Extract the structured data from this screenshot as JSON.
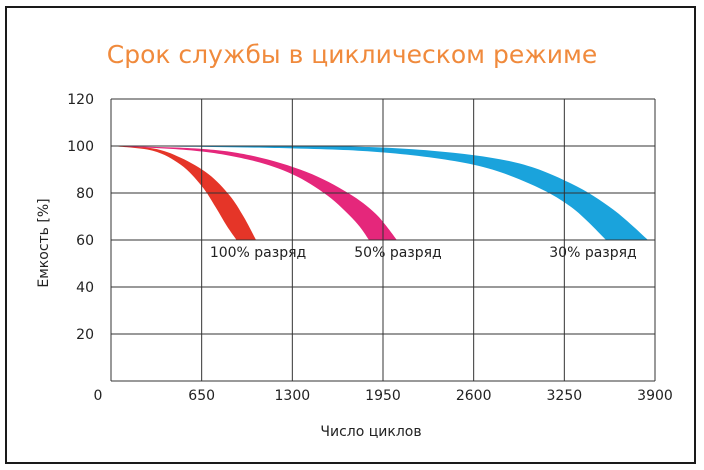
{
  "chart_data": {
    "type": "area",
    "title": "Срок службы в циклическом режиме",
    "xlabel": "Число циклов",
    "ylabel": "Емкость [%]",
    "xlim": [
      0,
      3900
    ],
    "ylim": [
      0,
      120
    ],
    "x_ticks": [
      "0",
      "650",
      "1300",
      "1950",
      "2600",
      "3250",
      "3900"
    ],
    "y_ticks": [
      "20",
      "40",
      "60",
      "80",
      "100",
      "120"
    ],
    "grid": true,
    "series": [
      {
        "name": "100% разряд",
        "color": "#e53528",
        "upper": [
          [
            0,
            100
          ],
          [
            300,
            99
          ],
          [
            500,
            95
          ],
          [
            700,
            88
          ],
          [
            850,
            79
          ],
          [
            950,
            70
          ],
          [
            1040,
            60
          ]
        ],
        "lower": [
          [
            0,
            100
          ],
          [
            300,
            98
          ],
          [
            500,
            92
          ],
          [
            650,
            83
          ],
          [
            750,
            74
          ],
          [
            830,
            66
          ],
          [
            900,
            60
          ]
        ]
      },
      {
        "name": "50% разряд",
        "color": "#e5277b",
        "upper": [
          [
            0,
            100
          ],
          [
            600,
            99
          ],
          [
            1000,
            96
          ],
          [
            1400,
            89
          ],
          [
            1700,
            80
          ],
          [
            1900,
            71
          ],
          [
            2050,
            60
          ]
        ],
        "lower": [
          [
            0,
            100
          ],
          [
            600,
            98
          ],
          [
            1000,
            94
          ],
          [
            1300,
            88
          ],
          [
            1550,
            79
          ],
          [
            1750,
            68
          ],
          [
            1850,
            60
          ]
        ]
      },
      {
        "name": "30% разряд",
        "color": "#1aa3dc",
        "upper": [
          [
            0,
            100
          ],
          [
            1500,
            100
          ],
          [
            2300,
            98
          ],
          [
            2900,
            93
          ],
          [
            3300,
            84
          ],
          [
            3600,
            73
          ],
          [
            3850,
            60
          ]
        ],
        "lower": [
          [
            0,
            100
          ],
          [
            1300,
            99
          ],
          [
            2000,
            97
          ],
          [
            2600,
            92
          ],
          [
            3000,
            84
          ],
          [
            3300,
            74
          ],
          [
            3550,
            60
          ]
        ]
      }
    ]
  }
}
